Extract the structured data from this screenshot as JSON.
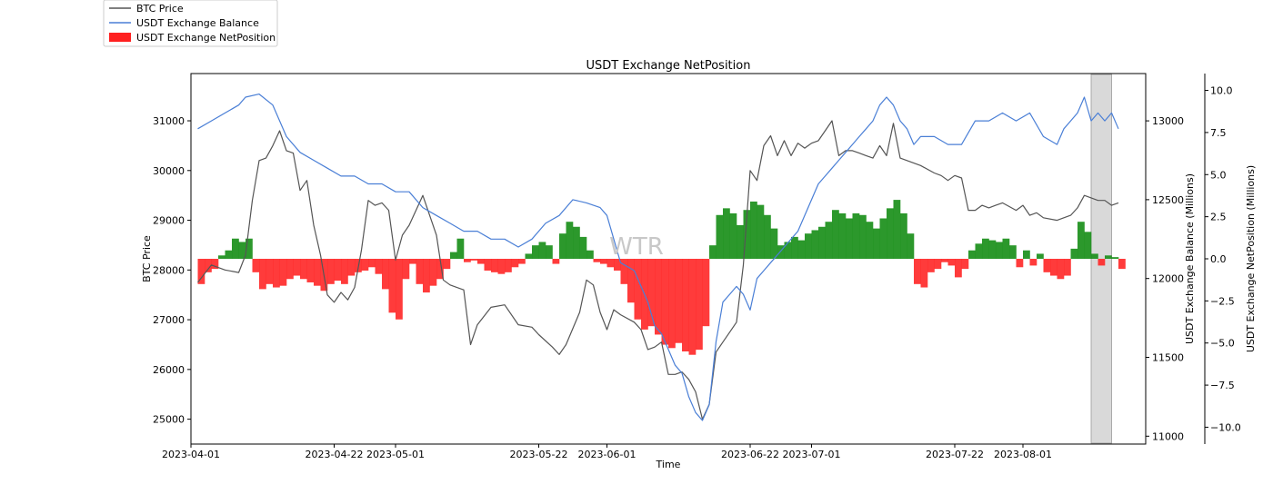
{
  "chart_data": {
    "type": "line",
    "title": "USDT Exchange NetPosition",
    "xlabel": "Time",
    "ylabel_left": "BTC Price",
    "ylabel_right": "USDT Exchange Balance (Millions)",
    "ylabel_right2": "USDT Exchange NetPosition (Millions)",
    "watermark": "WTR",
    "x_range": [
      "2023-04-01",
      "2023-08-19"
    ],
    "x_ticks": [
      "2023-04-01",
      "2023-04-22",
      "2023-05-01",
      "2023-05-22",
      "2023-06-01",
      "2023-06-22",
      "2023-07-01",
      "2023-07-22",
      "2023-08-01"
    ],
    "ylim_left": [
      24500,
      31950
    ],
    "yticks_left": [
      "25000",
      "26000",
      "27000",
      "28000",
      "29000",
      "30000",
      "31000"
    ],
    "ylim_right": [
      10950,
      13300
    ],
    "yticks_right": [
      "11000",
      "11500",
      "12000",
      "12500",
      "13000"
    ],
    "ylim_right2": [
      -11,
      11
    ],
    "yticks_right2": [
      "−10.0",
      "−7.5",
      "−5.0",
      "−2.5",
      "0.0",
      "2.5",
      "5.0",
      "7.5",
      "10.0"
    ],
    "highlight_range": [
      "2023-08-11",
      "2023-08-14"
    ],
    "legend": [
      {
        "label": "BTC Price",
        "type": "line",
        "color": "#555555"
      },
      {
        "label": "USDT Exchange Balance",
        "type": "line",
        "color": "#4a7fd6"
      },
      {
        "label": "USDT Exchange NetPosition",
        "type": "patch",
        "color": "#ff2020"
      }
    ],
    "colors": {
      "btc": "#555555",
      "balance": "#4a7fd6",
      "positive": "#1a8f1a",
      "negative": "#ff2020",
      "highlight": "#d9d9d9"
    },
    "series": [
      {
        "name": "BTC Price",
        "axis": "left",
        "x": [
          "2023-04-02",
          "2023-04-04",
          "2023-04-06",
          "2023-04-08",
          "2023-04-09",
          "2023-04-10",
          "2023-04-11",
          "2023-04-12",
          "2023-04-13",
          "2023-04-14",
          "2023-04-15",
          "2023-04-16",
          "2023-04-17",
          "2023-04-18",
          "2023-04-19",
          "2023-04-20",
          "2023-04-21",
          "2023-04-22",
          "2023-04-23",
          "2023-04-24",
          "2023-04-25",
          "2023-04-26",
          "2023-04-27",
          "2023-04-28",
          "2023-04-29",
          "2023-04-30",
          "2023-05-01",
          "2023-05-02",
          "2023-05-03",
          "2023-05-05",
          "2023-05-07",
          "2023-05-08",
          "2023-05-09",
          "2023-05-11",
          "2023-05-12",
          "2023-05-13",
          "2023-05-15",
          "2023-05-17",
          "2023-05-19",
          "2023-05-21",
          "2023-05-22",
          "2023-05-24",
          "2023-05-25",
          "2023-05-26",
          "2023-05-28",
          "2023-05-29",
          "2023-05-30",
          "2023-05-31",
          "2023-06-01",
          "2023-06-02",
          "2023-06-03",
          "2023-06-05",
          "2023-06-06",
          "2023-06-07",
          "2023-06-08",
          "2023-06-09",
          "2023-06-10",
          "2023-06-11",
          "2023-06-12",
          "2023-06-13",
          "2023-06-14",
          "2023-06-15",
          "2023-06-16",
          "2023-06-17",
          "2023-06-18",
          "2023-06-19",
          "2023-06-20",
          "2023-06-21",
          "2023-06-22",
          "2023-06-23",
          "2023-06-24",
          "2023-06-25",
          "2023-06-26",
          "2023-06-27",
          "2023-06-28",
          "2023-06-29",
          "2023-06-30",
          "2023-07-01",
          "2023-07-02",
          "2023-07-03",
          "2023-07-04",
          "2023-07-05",
          "2023-07-06",
          "2023-07-07",
          "2023-07-08",
          "2023-07-09",
          "2023-07-10",
          "2023-07-11",
          "2023-07-12",
          "2023-07-13",
          "2023-07-14",
          "2023-07-15",
          "2023-07-17",
          "2023-07-19",
          "2023-07-20",
          "2023-07-21",
          "2023-07-22",
          "2023-07-23",
          "2023-07-24",
          "2023-07-25",
          "2023-07-26",
          "2023-07-27",
          "2023-07-28",
          "2023-07-29",
          "2023-07-31",
          "2023-08-01",
          "2023-08-02",
          "2023-08-03",
          "2023-08-04",
          "2023-08-06",
          "2023-08-08",
          "2023-08-09",
          "2023-08-10",
          "2023-08-11",
          "2023-08-12",
          "2023-08-13",
          "2023-08-14",
          "2023-08-15"
        ],
        "values": [
          27750,
          28100,
          28000,
          27950,
          28300,
          29400,
          30200,
          30250,
          30500,
          30800,
          30400,
          30350,
          29600,
          29800,
          28900,
          28300,
          27500,
          27350,
          27550,
          27400,
          27650,
          28400,
          29400,
          29300,
          29350,
          29200,
          28200,
          28700,
          28900,
          29500,
          28700,
          27800,
          27700,
          27600,
          26500,
          26900,
          27250,
          27300,
          26900,
          26850,
          26700,
          26450,
          26300,
          26500,
          27150,
          27800,
          27700,
          27150,
          26800,
          27200,
          27100,
          26950,
          26800,
          26400,
          26450,
          26550,
          25900,
          25900,
          25950,
          25800,
          25550,
          25000,
          25300,
          26350,
          26550,
          26750,
          26950,
          28100,
          30000,
          29800,
          30500,
          30700,
          30300,
          30600,
          30300,
          30550,
          30450,
          30550,
          30600,
          30800,
          31000,
          30300,
          30400,
          30400,
          30350,
          30300,
          30250,
          30500,
          30300,
          30950,
          30250,
          30200,
          30100,
          29950,
          29900,
          29800,
          29900,
          29850,
          29200,
          29200,
          29300,
          29250,
          29300,
          29350,
          29200,
          29300,
          29100,
          29150,
          29050,
          29000,
          29100,
          29250,
          29500,
          29450,
          29400,
          29400,
          29300,
          29350
        ]
      },
      {
        "name": "USDT Exchange Balance",
        "axis": "right",
        "x": [
          "2023-04-02",
          "2023-04-04",
          "2023-04-06",
          "2023-04-08",
          "2023-04-09",
          "2023-04-11",
          "2023-04-13",
          "2023-04-15",
          "2023-04-17",
          "2023-04-19",
          "2023-04-21",
          "2023-04-23",
          "2023-04-25",
          "2023-04-27",
          "2023-04-29",
          "2023-05-01",
          "2023-05-03",
          "2023-05-05",
          "2023-05-07",
          "2023-05-09",
          "2023-05-11",
          "2023-05-13",
          "2023-05-15",
          "2023-05-17",
          "2023-05-19",
          "2023-05-21",
          "2023-05-23",
          "2023-05-25",
          "2023-05-27",
          "2023-05-29",
          "2023-05-31",
          "2023-06-01",
          "2023-06-02",
          "2023-06-03",
          "2023-06-05",
          "2023-06-06",
          "2023-06-07",
          "2023-06-08",
          "2023-06-09",
          "2023-06-10",
          "2023-06-11",
          "2023-06-12",
          "2023-06-13",
          "2023-06-14",
          "2023-06-15",
          "2023-06-16",
          "2023-06-17",
          "2023-06-18",
          "2023-06-19",
          "2023-06-20",
          "2023-06-21",
          "2023-06-22",
          "2023-06-23",
          "2023-06-24",
          "2023-06-25",
          "2023-06-26",
          "2023-06-27",
          "2023-06-28",
          "2023-06-29",
          "2023-06-30",
          "2023-07-01",
          "2023-07-02",
          "2023-07-03",
          "2023-07-04",
          "2023-07-05",
          "2023-07-06",
          "2023-07-07",
          "2023-07-08",
          "2023-07-09",
          "2023-07-10",
          "2023-07-11",
          "2023-07-12",
          "2023-07-13",
          "2023-07-14",
          "2023-07-15",
          "2023-07-16",
          "2023-07-17",
          "2023-07-19",
          "2023-07-21",
          "2023-07-23",
          "2023-07-25",
          "2023-07-27",
          "2023-07-29",
          "2023-07-31",
          "2023-08-02",
          "2023-08-04",
          "2023-08-06",
          "2023-08-07",
          "2023-08-08",
          "2023-08-09",
          "2023-08-10",
          "2023-08-11",
          "2023-08-12",
          "2023-08-13",
          "2023-08-14",
          "2023-08-15"
        ],
        "values": [
          12950,
          13000,
          13050,
          13100,
          13150,
          13170,
          13100,
          12900,
          12800,
          12750,
          12700,
          12650,
          12650,
          12600,
          12600,
          12550,
          12550,
          12450,
          12400,
          12350,
          12300,
          12300,
          12250,
          12250,
          12200,
          12250,
          12350,
          12400,
          12500,
          12480,
          12450,
          12400,
          12250,
          12100,
          12050,
          11950,
          11850,
          11700,
          11650,
          11550,
          11450,
          11400,
          11250,
          11150,
          11100,
          11200,
          11600,
          11850,
          11900,
          11950,
          11900,
          11800,
          12000,
          12050,
          12100,
          12150,
          12200,
          12250,
          12300,
          12400,
          12500,
          12600,
          12650,
          12700,
          12750,
          12800,
          12850,
          12900,
          12950,
          13000,
          13100,
          13150,
          13100,
          13000,
          12950,
          12850,
          12900,
          12900,
          12850,
          12850,
          13000,
          13000,
          13050,
          13000,
          13050,
          12900,
          12850,
          12950,
          13000,
          13050,
          13150,
          13000,
          13050,
          13000,
          13050,
          12950
        ]
      },
      {
        "name": "USDT Exchange NetPosition",
        "axis": "right2",
        "type": "bar",
        "x": [
          "2023-04-02",
          "2023-04-03",
          "2023-04-04",
          "2023-04-05",
          "2023-04-06",
          "2023-04-07",
          "2023-04-08",
          "2023-04-09",
          "2023-04-10",
          "2023-04-11",
          "2023-04-12",
          "2023-04-13",
          "2023-04-14",
          "2023-04-15",
          "2023-04-16",
          "2023-04-17",
          "2023-04-18",
          "2023-04-19",
          "2023-04-20",
          "2023-04-21",
          "2023-04-22",
          "2023-04-23",
          "2023-04-24",
          "2023-04-25",
          "2023-04-26",
          "2023-04-27",
          "2023-04-28",
          "2023-04-29",
          "2023-04-30",
          "2023-05-01",
          "2023-05-02",
          "2023-05-03",
          "2023-05-04",
          "2023-05-05",
          "2023-05-06",
          "2023-05-07",
          "2023-05-08",
          "2023-05-09",
          "2023-05-10",
          "2023-05-11",
          "2023-05-12",
          "2023-05-13",
          "2023-05-14",
          "2023-05-15",
          "2023-05-16",
          "2023-05-17",
          "2023-05-18",
          "2023-05-19",
          "2023-05-20",
          "2023-05-21",
          "2023-05-22",
          "2023-05-23",
          "2023-05-24",
          "2023-05-25",
          "2023-05-26",
          "2023-05-27",
          "2023-05-28",
          "2023-05-29",
          "2023-05-30",
          "2023-05-31",
          "2023-06-01",
          "2023-06-02",
          "2023-06-03",
          "2023-06-04",
          "2023-06-05",
          "2023-06-06",
          "2023-06-07",
          "2023-06-08",
          "2023-06-09",
          "2023-06-10",
          "2023-06-11",
          "2023-06-12",
          "2023-06-13",
          "2023-06-14",
          "2023-06-15",
          "2023-06-16",
          "2023-06-17",
          "2023-06-18",
          "2023-06-19",
          "2023-06-20",
          "2023-06-21",
          "2023-06-22",
          "2023-06-23",
          "2023-06-24",
          "2023-06-25",
          "2023-06-26",
          "2023-06-27",
          "2023-06-28",
          "2023-06-29",
          "2023-06-30",
          "2023-07-01",
          "2023-07-02",
          "2023-07-03",
          "2023-07-04",
          "2023-07-05",
          "2023-07-06",
          "2023-07-07",
          "2023-07-08",
          "2023-07-09",
          "2023-07-10",
          "2023-07-11",
          "2023-07-12",
          "2023-07-13",
          "2023-07-14",
          "2023-07-15",
          "2023-07-16",
          "2023-07-17",
          "2023-07-18",
          "2023-07-19",
          "2023-07-20",
          "2023-07-21",
          "2023-07-22",
          "2023-07-23",
          "2023-07-24",
          "2023-07-25",
          "2023-07-26",
          "2023-07-27",
          "2023-07-28",
          "2023-07-29",
          "2023-07-30",
          "2023-07-31",
          "2023-08-01",
          "2023-08-02",
          "2023-08-03",
          "2023-08-04",
          "2023-08-05",
          "2023-08-06",
          "2023-08-07",
          "2023-08-08",
          "2023-08-09",
          "2023-08-10",
          "2023-08-11",
          "2023-08-12",
          "2023-08-13",
          "2023-08-14",
          "2023-08-15"
        ],
        "values": [
          -1.5,
          -0.8,
          -0.6,
          0.2,
          0.5,
          1.2,
          1.0,
          1.2,
          -0.8,
          -1.8,
          -1.5,
          -1.7,
          -1.6,
          -1.2,
          -1.0,
          -1.2,
          -1.4,
          -1.6,
          -1.9,
          -1.5,
          -1.3,
          -1.5,
          -1.0,
          -0.8,
          -0.7,
          -0.5,
          -0.9,
          -1.8,
          -3.2,
          -3.6,
          -1.2,
          -0.3,
          -1.5,
          -2.0,
          -1.6,
          -1.2,
          -0.6,
          0.4,
          1.2,
          -0.2,
          -0.1,
          -0.3,
          -0.7,
          -0.8,
          -0.9,
          -0.8,
          -0.5,
          -0.3,
          0.3,
          0.8,
          1.0,
          0.8,
          -0.3,
          1.5,
          2.2,
          1.9,
          1.3,
          0.5,
          -0.2,
          -0.3,
          -0.5,
          -0.7,
          -1.5,
          -2.6,
          -3.6,
          -4.2,
          -4.0,
          -4.5,
          -5.1,
          -5.3,
          -5.0,
          -5.5,
          -5.7,
          -5.4,
          -4.0,
          0.8,
          2.6,
          3.0,
          2.7,
          2.0,
          2.9,
          3.4,
          3.2,
          2.6,
          1.8,
          0.8,
          1.0,
          1.3,
          1.1,
          1.5,
          1.7,
          1.9,
          2.2,
          2.9,
          2.7,
          2.4,
          2.7,
          2.6,
          2.2,
          1.8,
          2.4,
          3.0,
          3.5,
          2.7,
          1.5,
          -1.5,
          -1.7,
          -0.8,
          -0.6,
          -0.2,
          -0.4,
          -1.1,
          -0.6,
          0.5,
          0.9,
          1.2,
          1.1,
          1.0,
          1.2,
          0.8,
          -0.5,
          0.5,
          -0.4,
          0.3,
          -0.8,
          -1.0,
          -1.2,
          -1.0,
          0.6,
          2.2,
          1.6,
          0.3,
          -0.4,
          0.2,
          0.1,
          -0.6
        ]
      }
    ]
  }
}
